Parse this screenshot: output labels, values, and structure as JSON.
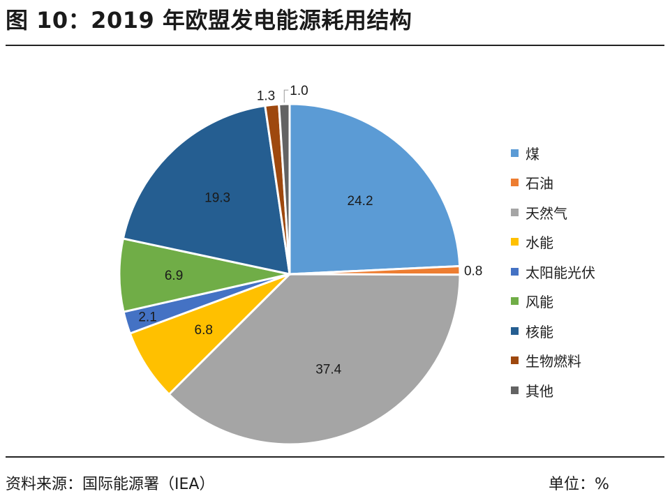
{
  "header": {
    "title": "图 10：2019 年欧盟发电能源耗用结构"
  },
  "footer": {
    "source": "资料来源：国际能源署（IEA）",
    "unit": "单位：%"
  },
  "chart_data": {
    "type": "pie",
    "title": "图 10：2019 年欧盟发电能源耗用结构",
    "unit": "%",
    "start_angle": "12 o'clock, clockwise",
    "legend_position": "right",
    "slices": [
      {
        "name": "煤",
        "value": 24.2,
        "label": "24.2",
        "color": "#5b9bd5"
      },
      {
        "name": "石油",
        "value": 0.8,
        "label": "0.8",
        "color": "#ed7d31"
      },
      {
        "name": "天然气",
        "value": 37.4,
        "label": "37.4",
        "color": "#a5a5a5"
      },
      {
        "name": "水能",
        "value": 6.8,
        "label": "6.8",
        "color": "#ffc000"
      },
      {
        "name": "太阳能光伏",
        "value": 2.1,
        "label": "2.1",
        "color": "#4472c4"
      },
      {
        "name": "风能",
        "value": 6.9,
        "label": "6.9",
        "color": "#70ad47"
      },
      {
        "name": "核能",
        "value": 19.3,
        "label": "19.3",
        "color": "#255e91"
      },
      {
        "name": "生物燃料",
        "value": 1.3,
        "label": "1.3",
        "color": "#9e480e"
      },
      {
        "name": "其他",
        "value": 1.0,
        "label": "1.0",
        "color": "#636363"
      }
    ]
  }
}
